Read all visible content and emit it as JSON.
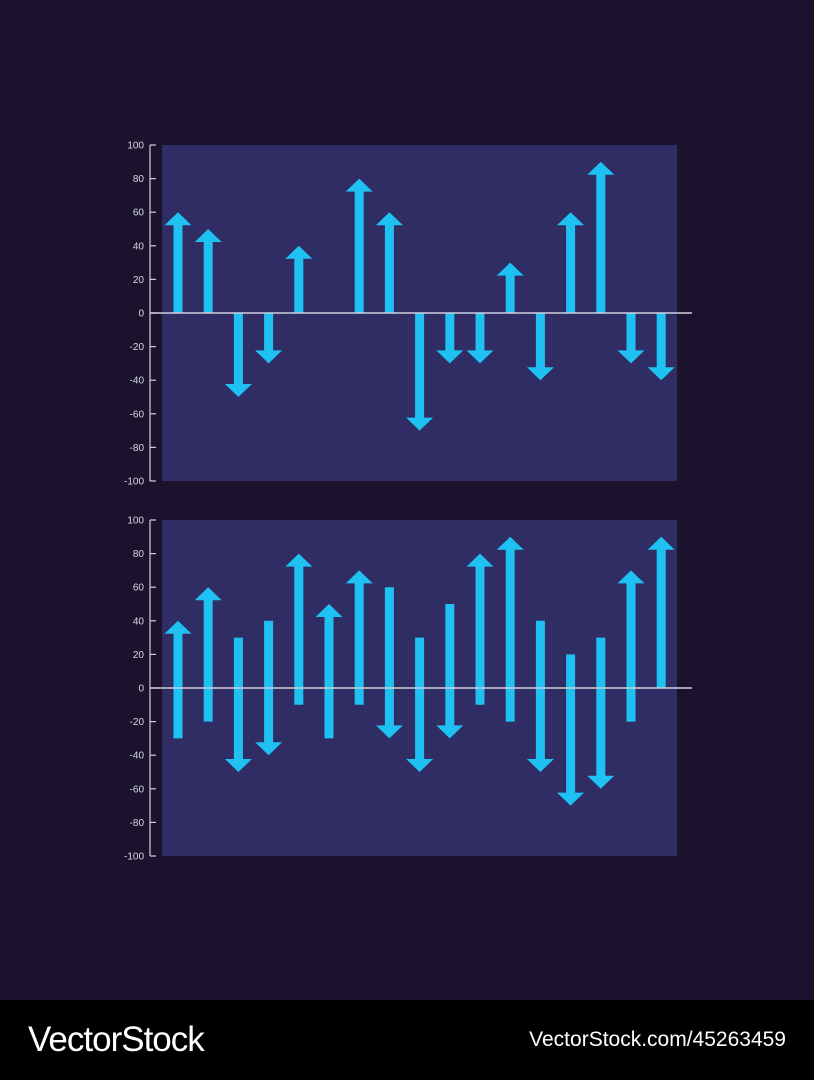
{
  "colors": {
    "background": "#1b132d",
    "panel": "#2f2d63",
    "arrow": "#1fc1f2",
    "axis": "#cfcfe0"
  },
  "chart_data": [
    {
      "type": "bar",
      "style": "arrow",
      "ylim": [
        -100,
        100
      ],
      "yticks": [
        "100",
        "80",
        "60",
        "40",
        "20",
        "0",
        "-20",
        "-40",
        "-60",
        "-80",
        "-100"
      ],
      "bars": [
        {
          "from": 0,
          "to": 60
        },
        {
          "from": 0,
          "to": 50
        },
        {
          "from": 0,
          "to": -50
        },
        {
          "from": 0,
          "to": -30
        },
        {
          "from": 0,
          "to": 40
        },
        {
          "from": 0,
          "to": 0
        },
        {
          "from": 0,
          "to": 80
        },
        {
          "from": 0,
          "to": 60
        },
        {
          "from": 0,
          "to": -70
        },
        {
          "from": 0,
          "to": -30
        },
        {
          "from": 0,
          "to": -30
        },
        {
          "from": 0,
          "to": 30
        },
        {
          "from": 0,
          "to": -40
        },
        {
          "from": 0,
          "to": 60
        },
        {
          "from": 0,
          "to": 90
        },
        {
          "from": 0,
          "to": -30
        },
        {
          "from": 0,
          "to": -40
        }
      ]
    },
    {
      "type": "bar",
      "style": "arrow",
      "ylim": [
        -100,
        100
      ],
      "yticks": [
        "100",
        "80",
        "60",
        "40",
        "20",
        "0",
        "-20",
        "-40",
        "-60",
        "-80",
        "-100"
      ],
      "bars": [
        {
          "from": -30,
          "to": 40
        },
        {
          "from": -20,
          "to": 60
        },
        {
          "from": 30,
          "to": -50
        },
        {
          "from": 40,
          "to": -40
        },
        {
          "from": -10,
          "to": 80
        },
        {
          "from": -30,
          "to": 50
        },
        {
          "from": -10,
          "to": 70
        },
        {
          "from": 60,
          "to": -30
        },
        {
          "from": 30,
          "to": -50
        },
        {
          "from": 50,
          "to": -30
        },
        {
          "from": -10,
          "to": 80
        },
        {
          "from": -20,
          "to": 90
        },
        {
          "from": 40,
          "to": -50
        },
        {
          "from": 20,
          "to": -70
        },
        {
          "from": 30,
          "to": -60
        },
        {
          "from": -20,
          "to": 70
        },
        {
          "from": 0,
          "to": 90
        }
      ]
    }
  ],
  "footer": {
    "brand": "VectorStock",
    "url": "VectorStock.com/45263459"
  }
}
